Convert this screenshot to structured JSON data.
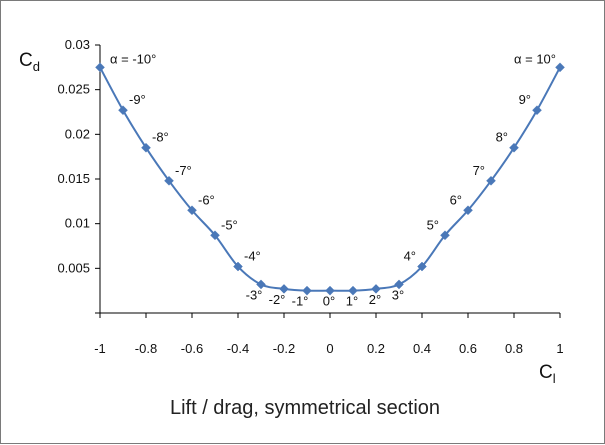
{
  "chart_data": {
    "type": "line",
    "title": "Lift / drag, symmetrical section",
    "xlabel": {
      "main": "C",
      "sub": "l"
    },
    "ylabel": {
      "main": "C",
      "sub": "d"
    },
    "xlim": [
      -1,
      1
    ],
    "ylim": [
      0,
      0.03
    ],
    "x_ticks": [
      -1,
      -0.8,
      -0.6,
      -0.4,
      -0.2,
      0,
      0.2,
      0.4,
      0.6,
      0.8,
      1
    ],
    "x_tick_labels": [
      "-1",
      "-0.8",
      "-0.6",
      "-0.4",
      "-0.2",
      "0",
      "0.2",
      "0.4",
      "0.6",
      "0.8",
      "1"
    ],
    "y_ticks": [
      0,
      0.005,
      0.01,
      0.015,
      0.02,
      0.025,
      0.03
    ],
    "y_tick_labels": [
      "",
      "0.005",
      "0.01",
      "0.015",
      "0.02",
      "0.025",
      "0.03"
    ],
    "grid": false,
    "series_color": "#4a78b8",
    "marker": "diamond",
    "points": [
      {
        "x": -1.0,
        "y": 0.0275,
        "label": "α = -10°"
      },
      {
        "x": -0.9,
        "y": 0.0227,
        "label": "-9°"
      },
      {
        "x": -0.8,
        "y": 0.0185,
        "label": "-8°"
      },
      {
        "x": -0.7,
        "y": 0.0148,
        "label": "-7°"
      },
      {
        "x": -0.6,
        "y": 0.0115,
        "label": "-6°"
      },
      {
        "x": -0.5,
        "y": 0.0087,
        "label": "-5°"
      },
      {
        "x": -0.4,
        "y": 0.0052,
        "label": "-4°"
      },
      {
        "x": -0.3,
        "y": 0.0032,
        "label": "-3°"
      },
      {
        "x": -0.2,
        "y": 0.0027,
        "label": "-2°"
      },
      {
        "x": -0.1,
        "y": 0.0025,
        "label": "-1°"
      },
      {
        "x": 0.0,
        "y": 0.0025,
        "label": "0°"
      },
      {
        "x": 0.1,
        "y": 0.0025,
        "label": "1°"
      },
      {
        "x": 0.2,
        "y": 0.0027,
        "label": "2°"
      },
      {
        "x": 0.3,
        "y": 0.0032,
        "label": "3°"
      },
      {
        "x": 0.4,
        "y": 0.0052,
        "label": "4°"
      },
      {
        "x": 0.5,
        "y": 0.0087,
        "label": "5°"
      },
      {
        "x": 0.6,
        "y": 0.0115,
        "label": "6°"
      },
      {
        "x": 0.7,
        "y": 0.0148,
        "label": "7°"
      },
      {
        "x": 0.8,
        "y": 0.0185,
        "label": "8°"
      },
      {
        "x": 0.9,
        "y": 0.0227,
        "label": "9°"
      },
      {
        "x": 1.0,
        "y": 0.0275,
        "label": "α = 10°"
      }
    ]
  }
}
